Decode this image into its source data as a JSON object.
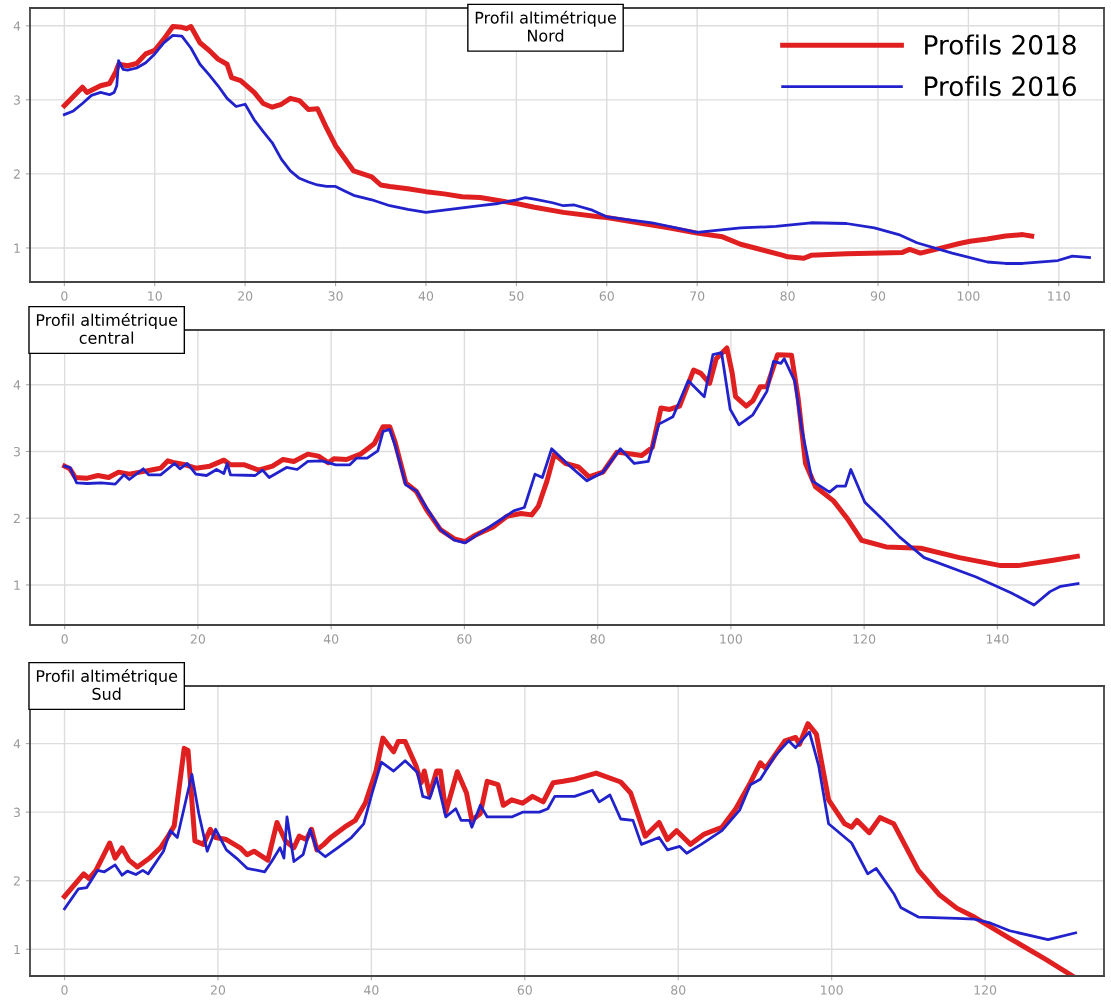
{
  "chart_data": [
    {
      "type": "line",
      "title": "Profil altimétrique\nNord",
      "legend": "top right",
      "grid": true,
      "xlim": [
        -3.8,
        115
      ],
      "ylim": [
        0.54,
        4.24
      ],
      "xticks": [
        0,
        10,
        20,
        30,
        40,
        50,
        60,
        70,
        80,
        90,
        100,
        110
      ],
      "yticks": [
        1,
        2,
        3,
        4
      ],
      "series": [
        {
          "name": "Profils 2018",
          "color": "#e02020",
          "x": [
            0,
            2,
            2.5,
            4,
            5,
            5.7,
            6,
            7,
            8,
            9,
            10,
            11,
            12,
            13,
            13.5,
            14,
            15,
            16,
            17,
            18,
            18.5,
            19.5,
            21,
            22,
            23,
            24,
            25,
            26,
            27,
            28,
            29,
            30,
            32,
            33,
            34,
            35,
            36,
            38,
            40,
            42,
            44,
            46,
            48,
            50,
            52,
            55.2,
            59.1,
            60,
            67,
            70,
            72.8,
            74.8,
            79.5,
            80,
            81.8,
            82.6,
            86.5,
            90.4,
            92.7,
            93.5,
            94.7,
            97.4,
            99,
            100.2,
            102.1,
            104.1,
            106,
            107
          ],
          "values": [
            2.92,
            3.17,
            3.1,
            3.19,
            3.22,
            3.38,
            3.48,
            3.46,
            3.49,
            3.62,
            3.67,
            3.82,
            3.99,
            3.98,
            3.96,
            3.99,
            3.77,
            3.67,
            3.55,
            3.48,
            3.3,
            3.26,
            3.1,
            2.95,
            2.9,
            2.94,
            3.02,
            2.99,
            2.87,
            2.88,
            2.62,
            2.38,
            2.04,
            2.0,
            1.96,
            1.85,
            1.83,
            1.8,
            1.76,
            1.73,
            1.69,
            1.68,
            1.64,
            1.6,
            1.55,
            1.48,
            1.42,
            1.41,
            1.27,
            1.2,
            1.15,
            1.05,
            0.9,
            0.88,
            0.86,
            0.9,
            0.92,
            0.93,
            0.94,
            0.98,
            0.93,
            1.01,
            1.06,
            1.09,
            1.12,
            1.16,
            1.18,
            1.16
          ]
        },
        {
          "name": "Profils 2016",
          "color": "#2222cc",
          "x": [
            0,
            1,
            2,
            3,
            4,
            5,
            5.5,
            5.8,
            6,
            6.5,
            7,
            8,
            9,
            10,
            11,
            12,
            13,
            14,
            15,
            16,
            17,
            18,
            19,
            20,
            21,
            22,
            23,
            24,
            25,
            26,
            27,
            28,
            29,
            30,
            31,
            32,
            34,
            36,
            38,
            40,
            42,
            44,
            46,
            48,
            50,
            51,
            52,
            54,
            55.2,
            56.4,
            58.4,
            60,
            65,
            70,
            74.8,
            78.7,
            82.6,
            86.5,
            89.6,
            92.3,
            94.3,
            98.2,
            102.1,
            104.1,
            106,
            109.9,
            111.5,
            113.4
          ],
          "values": [
            2.8,
            2.85,
            2.95,
            3.06,
            3.1,
            3.07,
            3.1,
            3.19,
            3.53,
            3.41,
            3.4,
            3.43,
            3.5,
            3.62,
            3.77,
            3.87,
            3.86,
            3.7,
            3.48,
            3.34,
            3.19,
            3.02,
            2.91,
            2.94,
            2.73,
            2.57,
            2.42,
            2.2,
            2.04,
            1.94,
            1.89,
            1.85,
            1.83,
            1.83,
            1.77,
            1.71,
            1.65,
            1.57,
            1.52,
            1.48,
            1.51,
            1.54,
            1.57,
            1.6,
            1.65,
            1.68,
            1.66,
            1.61,
            1.57,
            1.58,
            1.51,
            1.42,
            1.34,
            1.21,
            1.27,
            1.29,
            1.34,
            1.33,
            1.27,
            1.18,
            1.07,
            0.93,
            0.81,
            0.79,
            0.79,
            0.83,
            0.89,
            0.87
          ]
        }
      ]
    },
    {
      "type": "line",
      "title": "Profil altimétrique\ncentral",
      "grid": true,
      "xlim": [
        -5.2,
        156
      ],
      "ylim": [
        0.4,
        4.82
      ],
      "xticks": [
        0,
        20,
        40,
        60,
        80,
        100,
        120,
        140
      ],
      "yticks": [
        1,
        2,
        3,
        4
      ],
      "series": [
        {
          "color": "#e02020",
          "x": [
            0,
            0.8,
            1.6,
            3.4,
            5,
            6.6,
            8.1,
            9.7,
            11.3,
            13.4,
            14.4,
            15.5,
            16.5,
            18.1,
            19.7,
            21.8,
            23.9,
            24.9,
            27,
            29.1,
            31.2,
            32.8,
            34.4,
            36.5,
            38.1,
            39.6,
            40.4,
            42.3,
            44.4,
            46.5,
            47.8,
            48.8,
            49.6,
            51.2,
            52.8,
            54.3,
            56.4,
            58.5,
            60.1,
            61.7,
            64.3,
            66.4,
            68.5,
            70.1,
            71.1,
            72.4,
            73.5,
            75.2,
            77.1,
            78.7,
            80.8,
            82.9,
            84.5,
            86.6,
            88.2,
            89.5,
            90.8,
            92.3,
            94.4,
            95.5,
            96.8,
            97.8,
            99.4,
            100.2,
            100.7,
            102.3,
            103.3,
            104.4,
            105.4,
            107,
            109.1,
            110.1,
            111.2,
            112.7,
            115.4,
            117.5,
            119.6,
            123.3,
            128.5,
            134.3,
            140.5,
            143.1,
            148.4,
            152
          ],
          "values": [
            2.78,
            2.74,
            2.61,
            2.6,
            2.64,
            2.61,
            2.69,
            2.66,
            2.69,
            2.73,
            2.75,
            2.86,
            2.83,
            2.8,
            2.75,
            2.78,
            2.87,
            2.8,
            2.8,
            2.72,
            2.78,
            2.88,
            2.85,
            2.96,
            2.93,
            2.83,
            2.89,
            2.88,
            2.96,
            3.12,
            3.37,
            3.37,
            3.14,
            2.53,
            2.4,
            2.13,
            1.83,
            1.69,
            1.65,
            1.75,
            1.87,
            2.03,
            2.07,
            2.05,
            2.18,
            2.56,
            2.96,
            2.82,
            2.77,
            2.62,
            2.69,
            2.99,
            2.97,
            2.94,
            3.06,
            3.65,
            3.63,
            3.68,
            4.22,
            4.17,
            4.02,
            4.39,
            4.55,
            4.17,
            3.82,
            3.68,
            3.76,
            3.97,
            3.97,
            4.45,
            4.44,
            3.79,
            2.82,
            2.47,
            2.26,
            1.99,
            1.67,
            1.57,
            1.55,
            1.41,
            1.29,
            1.29,
            1.37,
            1.43
          ]
        },
        {
          "color": "#2222cc",
          "x": [
            0,
            0.8,
            1.8,
            3.4,
            5.5,
            7.6,
            8.9,
            9.7,
            11.8,
            12.6,
            14.4,
            16.5,
            17.3,
            18.4,
            19.7,
            21.3,
            22.8,
            23.9,
            24.4,
            24.9,
            28.6,
            29.7,
            30.7,
            33.3,
            34.9,
            36.5,
            38.6,
            40.7,
            42.8,
            43.8,
            45.4,
            47,
            47.8,
            48.8,
            49.6,
            51.2,
            52.8,
            54.3,
            56.4,
            58.5,
            60.1,
            62.2,
            65.3,
            67.4,
            69,
            70.6,
            71.7,
            73.1,
            75.6,
            78.4,
            80.8,
            83.4,
            85.5,
            87.6,
            89.2,
            91.3,
            93.6,
            96,
            97.3,
            98.6,
            99.9,
            101.2,
            103.3,
            105.4,
            106.4,
            107.5,
            108,
            109.6,
            110.6,
            112.2,
            114.8,
            115.9,
            117.2,
            118,
            120.1,
            122.7,
            125.3,
            129,
            136.8,
            142.1,
            145.5,
            147.9,
            149.5,
            152.1
          ],
          "values": [
            2.78,
            2.76,
            2.53,
            2.52,
            2.53,
            2.51,
            2.65,
            2.58,
            2.74,
            2.65,
            2.65,
            2.82,
            2.74,
            2.82,
            2.66,
            2.64,
            2.73,
            2.67,
            2.82,
            2.65,
            2.64,
            2.72,
            2.61,
            2.76,
            2.73,
            2.85,
            2.86,
            2.8,
            2.8,
            2.9,
            2.9,
            3.01,
            3.3,
            3.33,
            3.09,
            2.5,
            2.41,
            2.16,
            1.83,
            1.67,
            1.63,
            1.77,
            1.97,
            2.11,
            2.16,
            2.66,
            2.61,
            3.04,
            2.8,
            2.56,
            2.69,
            3.04,
            2.82,
            2.85,
            3.41,
            3.52,
            4.06,
            3.82,
            4.45,
            4.48,
            3.63,
            3.4,
            3.55,
            3.9,
            4.35,
            4.32,
            4.39,
            4.05,
            3.36,
            2.56,
            2.39,
            2.48,
            2.48,
            2.73,
            2.24,
            1.99,
            1.72,
            1.41,
            1.12,
            0.88,
            0.7,
            0.9,
            0.98,
            1.02
          ]
        }
      ]
    },
    {
      "type": "line",
      "title": "Profil altimétrique\nSud",
      "grid": true,
      "xlim": [
        -4.5,
        135.5
      ],
      "ylim": [
        0.61,
        4.84
      ],
      "xticks": [
        0,
        20,
        40,
        60,
        80,
        100,
        120
      ],
      "yticks": [
        1,
        2,
        3,
        4
      ],
      "series": [
        {
          "color": "#e02020",
          "x": [
            0,
            2.5,
            3.2,
            4.1,
            5.9,
            6.6,
            7.5,
            8.4,
            9.5,
            11.1,
            12.5,
            13.4,
            14.3,
            15.6,
            16.1,
            17,
            18.1,
            19,
            19.7,
            21.1,
            22.9,
            23.8,
            24.7,
            26.5,
            27.7,
            28.8,
            29.9,
            30.6,
            31.5,
            32.2,
            32.9,
            33.8,
            34.7,
            36.5,
            37.9,
            39.2,
            40.6,
            41.5,
            42.9,
            43.5,
            44.4,
            45.8,
            46.5,
            46.9,
            47.6,
            48.5,
            49,
            49.7,
            51.2,
            52.4,
            53.1,
            54.2,
            55.1,
            56.5,
            57.2,
            58.3,
            59.7,
            61,
            62.4,
            63.7,
            65,
            66.5,
            69.3,
            72.5,
            73.8,
            75.7,
            77.5,
            78.6,
            79.8,
            81.6,
            83.4,
            85.7,
            87.5,
            89.4,
            90.7,
            91.4,
            93.9,
            95.3,
            95.8,
            96.9,
            98,
            99.6,
            101.7,
            102.6,
            103.3,
            104.9,
            106.3,
            108.1,
            111.3,
            114,
            116.3,
            118.6,
            123.2,
            127.8,
            131.4
          ],
          "values": [
            1.77,
            2.1,
            2.03,
            2.15,
            2.55,
            2.33,
            2.48,
            2.3,
            2.2,
            2.33,
            2.48,
            2.63,
            2.8,
            3.93,
            3.9,
            2.58,
            2.53,
            2.75,
            2.63,
            2.6,
            2.48,
            2.38,
            2.43,
            2.3,
            2.85,
            2.58,
            2.48,
            2.65,
            2.6,
            2.75,
            2.45,
            2.53,
            2.63,
            2.78,
            2.88,
            3.13,
            3.6,
            4.08,
            3.88,
            4.03,
            4.03,
            3.68,
            3.43,
            3.6,
            3.25,
            3.6,
            3.6,
            3.0,
            3.59,
            3.28,
            2.88,
            2.98,
            3.45,
            3.4,
            3.1,
            3.18,
            3.13,
            3.23,
            3.15,
            3.43,
            3.45,
            3.48,
            3.57,
            3.44,
            3.28,
            2.65,
            2.85,
            2.6,
            2.73,
            2.53,
            2.68,
            2.78,
            3.05,
            3.43,
            3.72,
            3.64,
            4.04,
            4.09,
            3.99,
            4.29,
            4.14,
            3.18,
            2.83,
            2.78,
            2.88,
            2.7,
            2.92,
            2.83,
            2.15,
            1.8,
            1.6,
            1.47,
            1.16,
            0.86,
            0.61
          ]
        },
        {
          "color": "#2222cc",
          "x": [
            0,
            1.8,
            2.9,
            4.3,
            5.2,
            6.6,
            7.5,
            8.2,
            9.3,
            10.2,
            10.9,
            12.9,
            13.8,
            14.7,
            16.6,
            17.5,
            18.6,
            19.7,
            21.1,
            22.4,
            23.8,
            26.1,
            27,
            28.1,
            28.6,
            29,
            29.9,
            31.1,
            32,
            32.9,
            34,
            35.6,
            37.4,
            39,
            40.1,
            41.3,
            42.9,
            44.4,
            46,
            46.7,
            47.6,
            48.5,
            49.7,
            51,
            51.7,
            52.8,
            53.1,
            54.2,
            55.1,
            58.3,
            59.7,
            61.9,
            63,
            63.9,
            66.5,
            68.8,
            69.7,
            71.1,
            72.5,
            74.1,
            75.2,
            77.5,
            78.6,
            80.2,
            81.1,
            83,
            85.7,
            88,
            89.4,
            90.7,
            92.6,
            94.4,
            95.3,
            97.1,
            98.3,
            99.6,
            102.6,
            104.7,
            105.8,
            108.1,
            109,
            111.3,
            116.3,
            118.6,
            120.5,
            123.2,
            128.2,
            131.8
          ],
          "values": [
            1.59,
            1.88,
            1.9,
            2.15,
            2.13,
            2.23,
            2.08,
            2.14,
            2.09,
            2.15,
            2.1,
            2.43,
            2.73,
            2.63,
            3.55,
            2.98,
            2.43,
            2.75,
            2.45,
            2.33,
            2.18,
            2.13,
            2.28,
            2.48,
            2.33,
            2.93,
            2.28,
            2.38,
            2.75,
            2.45,
            2.35,
            2.48,
            2.63,
            2.83,
            3.28,
            3.73,
            3.6,
            3.75,
            3.58,
            3.23,
            3.2,
            3.5,
            2.93,
            3.05,
            2.88,
            2.88,
            2.78,
            3.1,
            2.93,
            2.93,
            3.0,
            3.0,
            3.05,
            3.23,
            3.23,
            3.32,
            3.15,
            3.25,
            2.9,
            2.88,
            2.53,
            2.63,
            2.45,
            2.5,
            2.4,
            2.53,
            2.73,
            3.03,
            3.4,
            3.48,
            3.82,
            4.04,
            3.94,
            4.17,
            3.68,
            2.83,
            2.55,
            2.1,
            2.18,
            1.81,
            1.61,
            1.47,
            1.45,
            1.44,
            1.39,
            1.27,
            1.14,
            1.24
          ]
        }
      ]
    }
  ]
}
